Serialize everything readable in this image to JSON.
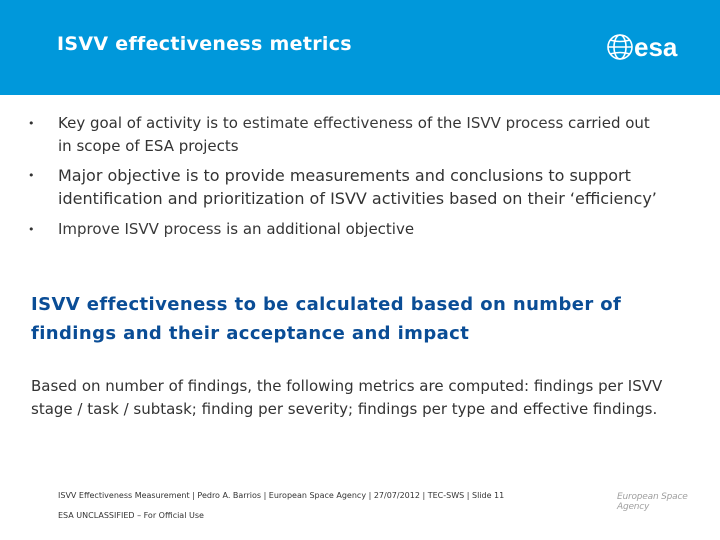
{
  "header": {
    "title": "ISVV effectiveness metrics",
    "logo_text": "esa"
  },
  "bullets": [
    {
      "text_a": "Key goal of activity is to ",
      "em_a": "estimate effectiveness",
      "text_b": " of the ",
      "em_b": "ISVV process",
      "text_c": " carried out in scope of ESA projects"
    },
    {
      "text_a": "Major objective is to provide measurements and conclusions to support identification and prioritization of ISVV activities based on their ‘efficiency’"
    },
    {
      "em_a": "Improve ISVV process",
      "text_a": " is an additional objective"
    }
  ],
  "highlight": "ISVV effectiveness to be calculated based on number of findings and their acceptance and impact",
  "paragraph": "Based on number of findings, the following metrics are computed: findings per ISVV stage / task / subtask; finding per severity; findings per type and effective findings.",
  "footer": {
    "line": "ISVV Effectiveness Measurement | Pedro A. Barrios | European Space Agency | 27/07/2012 | TEC-SWS | Slide 11",
    "classification": "ESA UNCLASSIFIED – For Official Use",
    "agency": "European Space Agency"
  },
  "colors": {
    "header_bg": "#0098db",
    "highlight": "#0a4d96"
  }
}
